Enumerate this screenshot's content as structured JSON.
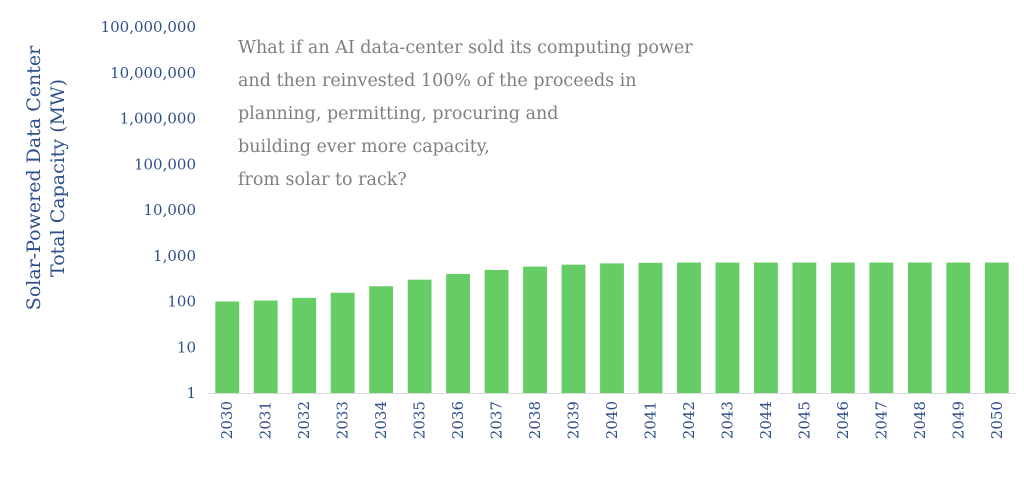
{
  "chart_data": {
    "type": "bar",
    "title": "",
    "xlabel": "",
    "ylabel_lines": [
      "Solar-Powered Data Center",
      "Total Capacity (MW)"
    ],
    "yscale": "log",
    "ylim": [
      1,
      100000000
    ],
    "yticks": [
      {
        "value": 1,
        "label": "1"
      },
      {
        "value": 10,
        "label": "10"
      },
      {
        "value": 100,
        "label": "100"
      },
      {
        "value": 1000,
        "label": "1,000"
      },
      {
        "value": 10000,
        "label": "10,000"
      },
      {
        "value": 100000,
        "label": "100,000"
      },
      {
        "value": 1000000,
        "label": "1,000,000"
      },
      {
        "value": 10000000,
        "label": "10,000,000"
      },
      {
        "value": 100000000,
        "label": "100,000,000"
      }
    ],
    "categories": [
      "2030",
      "2031",
      "2032",
      "2033",
      "2034",
      "2035",
      "2036",
      "2037",
      "2038",
      "2039",
      "2040",
      "2041",
      "2042",
      "2043",
      "2044",
      "2045",
      "2046",
      "2047",
      "2048",
      "2049",
      "2050"
    ],
    "values": [
      100,
      105,
      120,
      155,
      215,
      300,
      400,
      490,
      580,
      640,
      680,
      700,
      710,
      710,
      710,
      710,
      710,
      710,
      710,
      710,
      710
    ],
    "bar_color": "#66cc66",
    "grid": false,
    "legend": "none",
    "annotation": [
      "What if an AI data-center sold its computing power",
      "and then reinvested 100% of the proceeds in",
      "planning, permitting, procuring and",
      "building ever more capacity,",
      "from solar to rack?"
    ]
  }
}
